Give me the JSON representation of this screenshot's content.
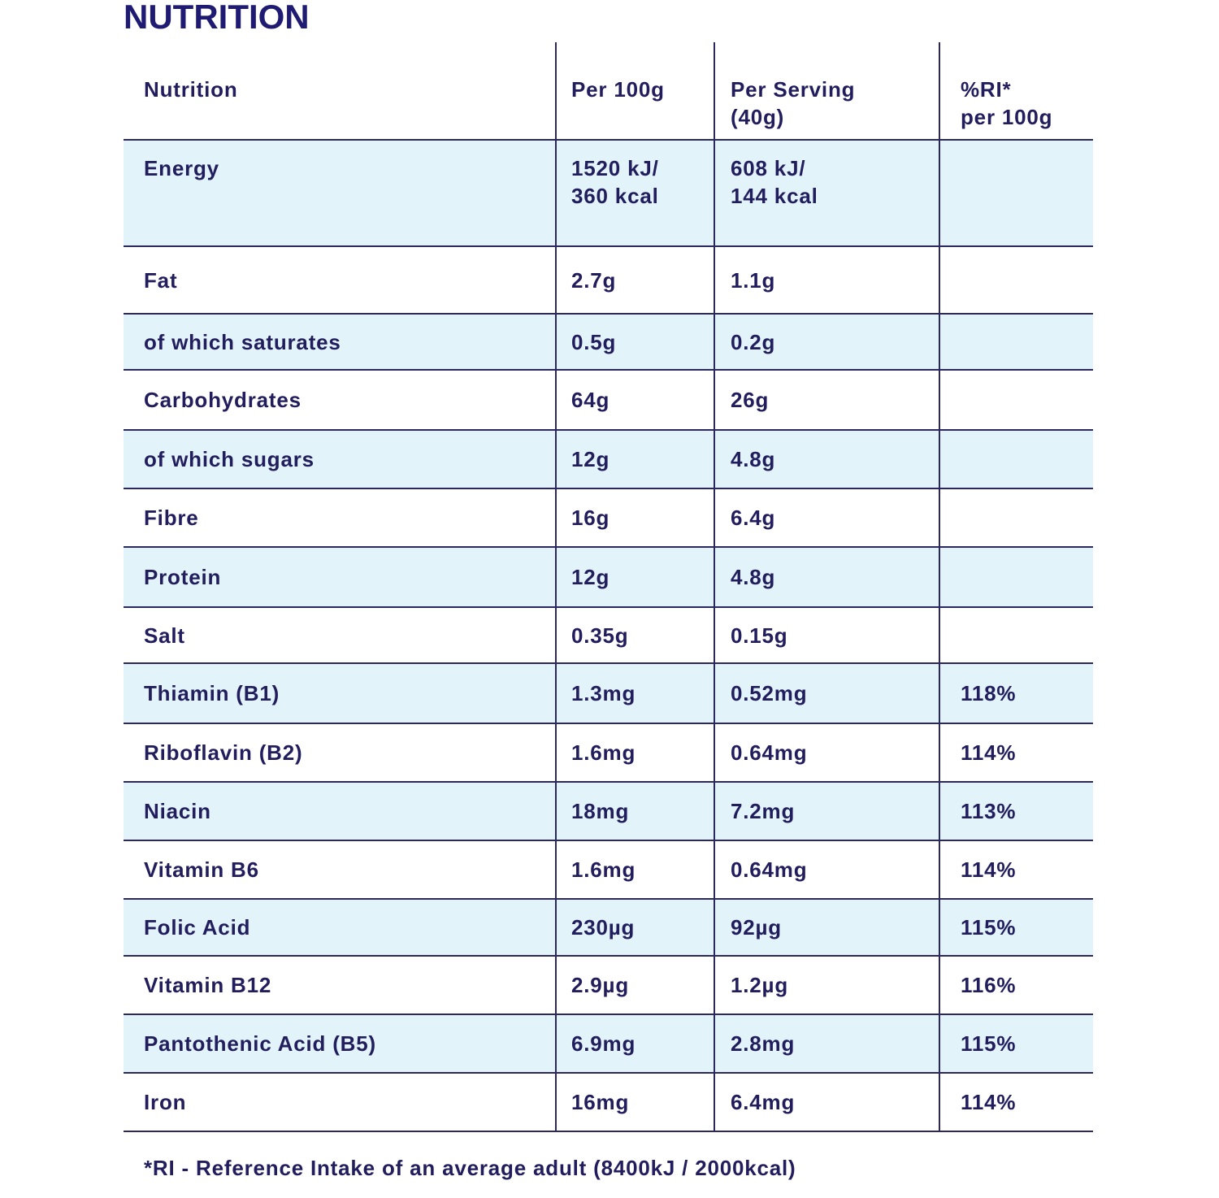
{
  "header": {
    "title": "NUTRITION"
  },
  "table": {
    "columns": [
      "Nutrition",
      "Per 100g",
      [
        "Per Serving",
        "(40g)"
      ],
      [
        "%RI*",
        "per 100g"
      ]
    ],
    "rows": [
      [
        "Energy",
        [
          "1520 kJ/",
          "360 kcal"
        ],
        [
          "608 kJ/",
          "144 kcal"
        ]
      ],
      [
        "Fat",
        "2.7g",
        "1.1g"
      ],
      [
        "of which saturates",
        "0.5g",
        "0.2g"
      ],
      [
        "Carbohydrates",
        "64g",
        "26g"
      ],
      [
        "of which sugars",
        "12g",
        "4.8g"
      ],
      [
        "Fibre",
        "16g",
        "6.4g"
      ],
      [
        "Protein",
        "12g",
        "4.8g"
      ],
      [
        "Salt",
        "0.35g",
        "0.15g"
      ],
      [
        "Thiamin (B1)",
        "1.3mg",
        "0.52mg",
        "118%"
      ],
      [
        "Riboflavin (B2)",
        "1.6mg",
        "0.64mg",
        "114%"
      ],
      [
        "Niacin",
        "18mg",
        "7.2mg",
        "113%"
      ],
      [
        "Vitamin B6",
        "1.6mg",
        "0.64mg",
        "114%"
      ],
      [
        "Folic Acid",
        "230µg",
        "92µg",
        "115%"
      ],
      [
        "Vitamin B12",
        "2.9µg",
        "1.2µg",
        "116%"
      ],
      [
        "Pantothenic Acid (B5)",
        "6.9mg",
        "2.8mg",
        "115%"
      ],
      [
        "Iron",
        "16mg",
        "6.4mg",
        "114%"
      ]
    ]
  },
  "footnote": "*RI - Reference Intake of an average adult (8400kJ / 2000kcal)"
}
